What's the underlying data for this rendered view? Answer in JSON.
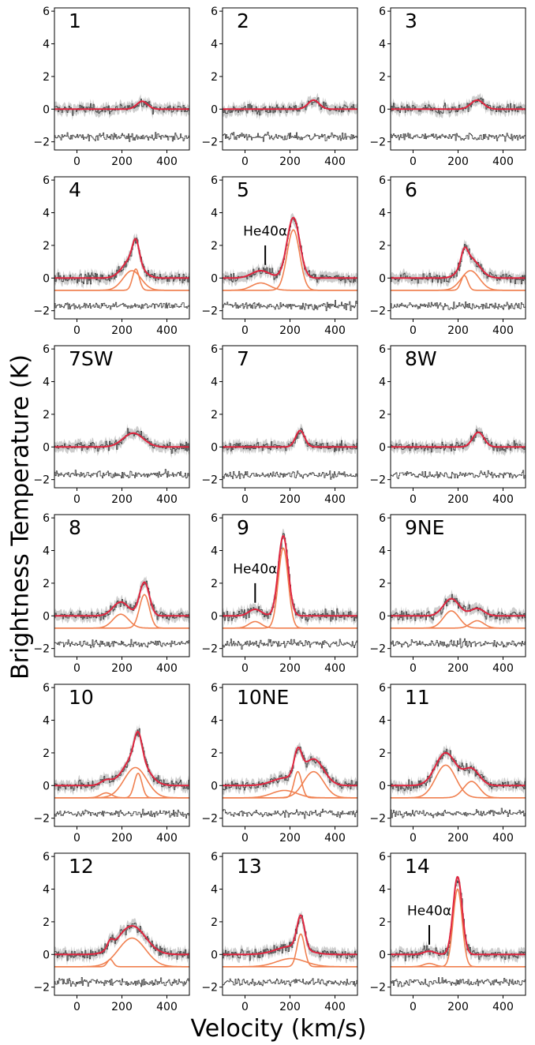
{
  "figure": {
    "ylabel": "Brightness Temperature (K)",
    "xlabel": "Velocity (km/s)"
  },
  "colors": {
    "data": "#3a3a3a",
    "errorband": "#c8c8c8",
    "fit": "#e0253f",
    "components": "#f08050",
    "residual": "#3a3a3a"
  },
  "chart_data": [
    {
      "type": "line",
      "label": "1",
      "xlim": [
        -100,
        500
      ],
      "ylim": [
        -2.5,
        6.2
      ],
      "xticks": [
        0,
        200,
        400
      ],
      "yticks": [
        -2,
        0,
        2,
        4,
        6
      ],
      "components": [
        {
          "amp": 0.48,
          "center": 290,
          "width": 24
        }
      ],
      "annotation": null
    },
    {
      "type": "line",
      "label": "2",
      "xlim": [
        -100,
        500
      ],
      "ylim": [
        -2.5,
        6.2
      ],
      "xticks": [
        0,
        200,
        400
      ],
      "yticks": [
        -2,
        0,
        2,
        4,
        6
      ],
      "components": [
        {
          "amp": 0.55,
          "center": 305,
          "width": 25
        }
      ],
      "annotation": null
    },
    {
      "type": "line",
      "label": "3",
      "xlim": [
        -100,
        500
      ],
      "ylim": [
        -2.5,
        6.2
      ],
      "xticks": [
        0,
        200,
        400
      ],
      "yticks": [
        -2,
        0,
        2,
        4,
        6
      ],
      "components": [
        {
          "amp": 0.55,
          "center": 285,
          "width": 28
        }
      ],
      "annotation": null
    },
    {
      "type": "line",
      "label": "4",
      "xlim": [
        -100,
        500
      ],
      "ylim": [
        -2.5,
        6.2
      ],
      "xticks": [
        0,
        200,
        400
      ],
      "yticks": [
        -2,
        0,
        2,
        4,
        6
      ],
      "components": [
        {
          "amp": 1.3,
          "center": 262,
          "width": 15
        },
        {
          "amp": 1.2,
          "center": 245,
          "width": 40
        }
      ],
      "annotation": null
    },
    {
      "type": "line",
      "label": "5",
      "xlim": [
        -100,
        500
      ],
      "ylim": [
        -2.5,
        6.2
      ],
      "xticks": [
        0,
        200,
        400
      ],
      "yticks": [
        -2,
        0,
        2,
        4,
        6
      ],
      "components": [
        {
          "amp": 3.7,
          "center": 215,
          "width": 28
        },
        {
          "amp": 0.45,
          "center": 70,
          "width": 40
        }
      ],
      "annotation": {
        "text": "He40α",
        "x": 90
      }
    },
    {
      "type": "line",
      "label": "6",
      "xlim": [
        -100,
        500
      ],
      "ylim": [
        -2.5,
        6.2
      ],
      "xticks": [
        0,
        200,
        400
      ],
      "yticks": [
        -2,
        0,
        2,
        4,
        6
      ],
      "components": [
        {
          "amp": 0.9,
          "center": 228,
          "width": 15
        },
        {
          "amp": 1.2,
          "center": 255,
          "width": 40
        }
      ],
      "annotation": null
    },
    {
      "type": "line",
      "label": "7SW",
      "xlim": [
        -100,
        500
      ],
      "ylim": [
        -2.5,
        6.2
      ],
      "xticks": [
        0,
        200,
        400
      ],
      "yticks": [
        -2,
        0,
        2,
        4,
        6
      ],
      "components": [
        {
          "amp": 0.85,
          "center": 250,
          "width": 45
        }
      ],
      "annotation": null
    },
    {
      "type": "line",
      "label": "7",
      "xlim": [
        -100,
        500
      ],
      "ylim": [
        -2.5,
        6.2
      ],
      "xticks": [
        0,
        200,
        400
      ],
      "yticks": [
        -2,
        0,
        2,
        4,
        6
      ],
      "components": [
        {
          "amp": 1.0,
          "center": 245,
          "width": 20
        }
      ],
      "annotation": null
    },
    {
      "type": "line",
      "label": "8W",
      "xlim": [
        -100,
        500
      ],
      "ylim": [
        -2.5,
        6.2
      ],
      "xticks": [
        0,
        200,
        400
      ],
      "yticks": [
        -2,
        0,
        2,
        4,
        6
      ],
      "components": [
        {
          "amp": 0.9,
          "center": 290,
          "width": 25
        }
      ],
      "annotation": null
    },
    {
      "type": "line",
      "label": "8",
      "xlim": [
        -100,
        500
      ],
      "ylim": [
        -2.5,
        6.2
      ],
      "xticks": [
        0,
        200,
        400
      ],
      "yticks": [
        -2,
        0,
        2,
        4,
        6
      ],
      "components": [
        {
          "amp": 2.05,
          "center": 300,
          "width": 22
        },
        {
          "amp": 0.85,
          "center": 195,
          "width": 35
        }
      ],
      "annotation": null
    },
    {
      "type": "line",
      "label": "9",
      "xlim": [
        -100,
        500
      ],
      "ylim": [
        -2.5,
        6.2
      ],
      "xticks": [
        0,
        200,
        400
      ],
      "yticks": [
        -2,
        0,
        2,
        4,
        6
      ],
      "components": [
        {
          "amp": 4.9,
          "center": 170,
          "width": 22
        },
        {
          "amp": 0.4,
          "center": 45,
          "width": 28
        }
      ],
      "annotation": {
        "text": "He40α",
        "x": 45
      }
    },
    {
      "type": "line",
      "label": "9NE",
      "xlim": [
        -100,
        500
      ],
      "ylim": [
        -2.5,
        6.2
      ],
      "xticks": [
        0,
        200,
        400
      ],
      "yticks": [
        -2,
        0,
        2,
        4,
        6
      ],
      "components": [
        {
          "amp": 1.05,
          "center": 170,
          "width": 35
        },
        {
          "amp": 0.45,
          "center": 285,
          "width": 30
        }
      ],
      "annotation": null
    },
    {
      "type": "line",
      "label": "10",
      "xlim": [
        -100,
        500
      ],
      "ylim": [
        -2.5,
        6.2
      ],
      "xticks": [
        0,
        200,
        400
      ],
      "yticks": [
        -2,
        0,
        2,
        4,
        6
      ],
      "components": [
        {
          "amp": 1.5,
          "center": 272,
          "width": 17
        },
        {
          "amp": 1.85,
          "center": 260,
          "width": 50
        },
        {
          "amp": 0.3,
          "center": 130,
          "width": 25
        }
      ],
      "annotation": null
    },
    {
      "type": "line",
      "label": "10NE",
      "xlim": [
        -100,
        500
      ],
      "ylim": [
        -2.5,
        6.2
      ],
      "xticks": [
        0,
        200,
        400
      ],
      "yticks": [
        -2,
        0,
        2,
        4,
        6
      ],
      "components": [
        {
          "amp": 1.6,
          "center": 235,
          "width": 17
        },
        {
          "amp": 1.6,
          "center": 305,
          "width": 45
        },
        {
          "amp": 0.45,
          "center": 175,
          "width": 55
        }
      ],
      "annotation": null
    },
    {
      "type": "line",
      "label": "11",
      "xlim": [
        -100,
        500
      ],
      "ylim": [
        -2.5,
        6.2
      ],
      "xticks": [
        0,
        200,
        400
      ],
      "yticks": [
        -2,
        0,
        2,
        4,
        6
      ],
      "components": [
        {
          "amp": 2.0,
          "center": 145,
          "width": 45
        },
        {
          "amp": 1.0,
          "center": 260,
          "width": 35
        }
      ],
      "annotation": null
    },
    {
      "type": "line",
      "label": "12",
      "xlim": [
        -100,
        500
      ],
      "ylim": [
        -2.5,
        6.2
      ],
      "xticks": [
        0,
        200,
        400
      ],
      "yticks": [
        -2,
        0,
        2,
        4,
        6
      ],
      "components": [
        {
          "amp": 1.75,
          "center": 245,
          "width": 60
        },
        {
          "amp": 0.45,
          "center": 148,
          "width": 13
        }
      ],
      "annotation": null
    },
    {
      "type": "line",
      "label": "13",
      "xlim": [
        -100,
        500
      ],
      "ylim": [
        -2.5,
        6.2
      ],
      "xticks": [
        0,
        200,
        400
      ],
      "yticks": [
        -2,
        0,
        2,
        4,
        6
      ],
      "components": [
        {
          "amp": 2.0,
          "center": 248,
          "width": 17
        },
        {
          "amp": 0.5,
          "center": 205,
          "width": 65
        }
      ],
      "annotation": null
    },
    {
      "type": "line",
      "label": "14",
      "xlim": [
        -100,
        500
      ],
      "ylim": [
        -2.5,
        6.2
      ],
      "xticks": [
        0,
        200,
        400
      ],
      "yticks": [
        -2,
        0,
        2,
        4,
        6
      ],
      "components": [
        {
          "amp": 4.75,
          "center": 198,
          "width": 20
        },
        {
          "amp": 0.2,
          "center": 72,
          "width": 25
        }
      ],
      "annotation": {
        "text": "He40α",
        "x": 72
      }
    }
  ]
}
